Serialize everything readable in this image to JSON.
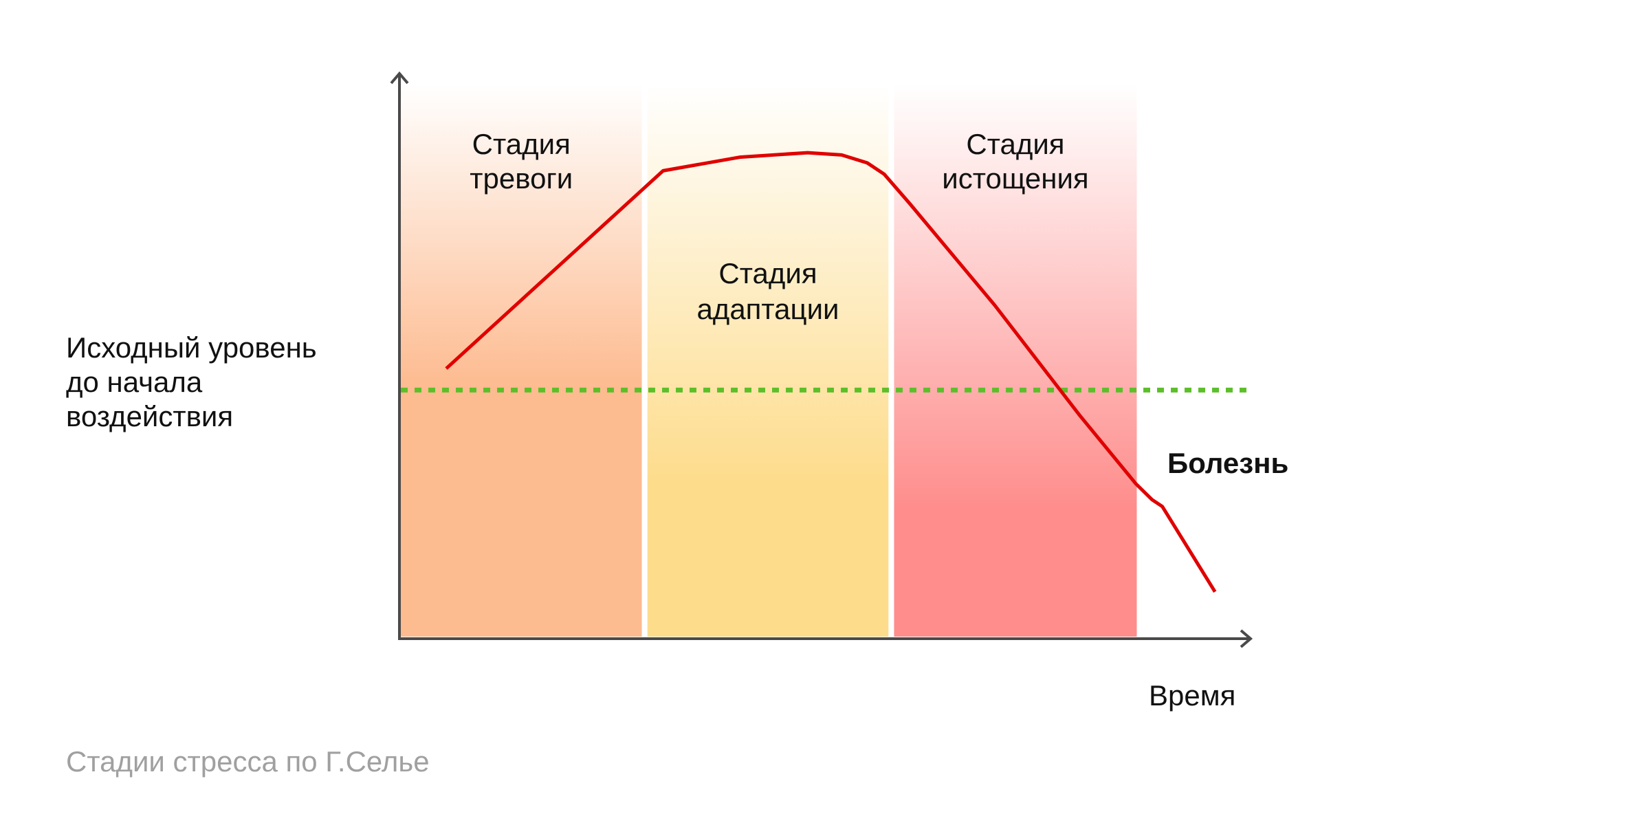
{
  "chart_data": {
    "type": "line",
    "title": "",
    "xlabel": "Время",
    "ylabel": "",
    "xlim": [
      0,
      100
    ],
    "ylim": [
      0,
      100
    ],
    "grid": false,
    "baseline": {
      "label_lines": [
        "Исходный уровень",
        "до начала",
        "воздействия"
      ],
      "value": 44,
      "color": "#5cbf2a",
      "style": "dotted"
    },
    "stages": [
      {
        "label_lines": [
          "Стадия",
          "тревоги"
        ],
        "x_range": [
          0,
          28.5
        ],
        "color": "#fdbb90"
      },
      {
        "label_lines": [
          "Стадия",
          "адаптации"
        ],
        "x_range": [
          29,
          57.5
        ],
        "color": "#fddc8c"
      },
      {
        "label_lines": [
          "Стадия",
          "истощения"
        ],
        "x_range": [
          58,
          86.7
        ],
        "color": "#fe8d8c"
      }
    ],
    "series": [
      {
        "color": "#e00000",
        "x": [
          5.5,
          31,
          40,
          48,
          52,
          55,
          57,
          60,
          70,
          80,
          86.6,
          88.5,
          89.7,
          95.9
        ],
        "y": [
          47.8,
          82.8,
          85.2,
          86,
          85.6,
          84.2,
          82.2,
          77,
          59,
          39.5,
          27.4,
          24.6,
          23.4,
          8.3
        ]
      }
    ],
    "annotations": [
      {
        "text": "Болезнь",
        "color": "#e00000"
      }
    ]
  },
  "caption": "Стадии стресса по Г.Селье"
}
